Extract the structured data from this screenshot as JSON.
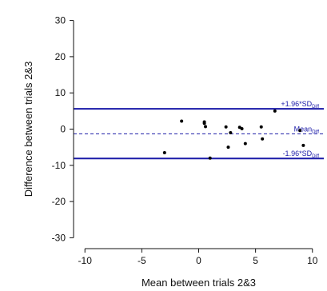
{
  "chart_data": {
    "type": "scatter",
    "title": "",
    "xlabel": "Mean between trials 2&3",
    "ylabel": "Difference between trials 2&3",
    "xlim": [
      -11,
      11
    ],
    "ylim": [
      -33,
      33
    ],
    "x_ticks": [
      -10,
      -5,
      0,
      5,
      10
    ],
    "y_ticks": [
      -30,
      -20,
      -10,
      0,
      10,
      20,
      30
    ],
    "x_tick_labels": [
      "-10",
      "-5",
      "0",
      "5",
      "10"
    ],
    "y_tick_labels": [
      "-30",
      "-20",
      "-10",
      "0",
      "10",
      "20",
      "30"
    ],
    "grid": false,
    "legend": "none",
    "colors": {
      "points": "#000000",
      "reference_lines": "#1a1aa8",
      "axes": "#111111"
    },
    "points": [
      {
        "x": -3.0,
        "y": -6.5
      },
      {
        "x": -1.5,
        "y": 2.2
      },
      {
        "x": 0.5,
        "y": 2.0
      },
      {
        "x": 0.5,
        "y": 1.6
      },
      {
        "x": 0.6,
        "y": 0.7
      },
      {
        "x": 1.0,
        "y": -8.0
      },
      {
        "x": 2.4,
        "y": 0.6
      },
      {
        "x": 2.6,
        "y": -5.0
      },
      {
        "x": 2.8,
        "y": -1.0
      },
      {
        "x": 3.6,
        "y": 0.5
      },
      {
        "x": 3.8,
        "y": 0.1
      },
      {
        "x": 4.1,
        "y": -4.0
      },
      {
        "x": 5.5,
        "y": 0.6
      },
      {
        "x": 5.6,
        "y": -2.7
      },
      {
        "x": 6.7,
        "y": 5.0
      },
      {
        "x": 8.9,
        "y": -0.4
      },
      {
        "x": 9.2,
        "y": -4.5
      }
    ],
    "reference_lines": [
      {
        "label": "+1.96*SD",
        "label_sub": "Diff",
        "y": 5.6,
        "style": "solid"
      },
      {
        "label": "Mean",
        "label_sub": "Diff",
        "y": -1.3,
        "style": "dashed"
      },
      {
        "label": "-1.96*SD",
        "label_sub": "Diff",
        "y": -8.1,
        "style": "solid"
      }
    ]
  }
}
